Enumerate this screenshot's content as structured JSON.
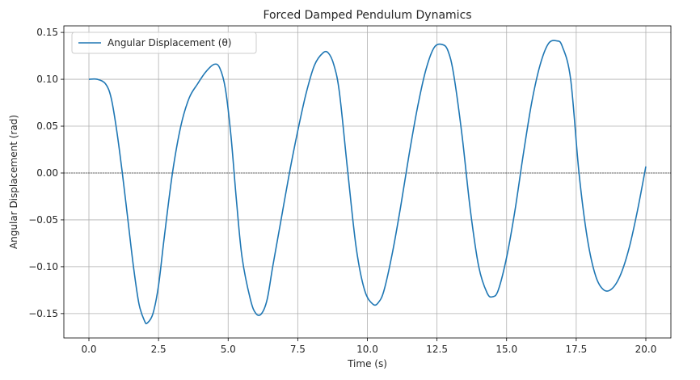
{
  "chart_data": {
    "type": "line",
    "title": "Forced Damped Pendulum Dynamics",
    "xlabel": "Time (s)",
    "ylabel": "Angular Displacement (rad)",
    "xlim": [
      -0.9,
      20.9
    ],
    "ylim": [
      -0.176,
      0.157
    ],
    "xticks": [
      0.0,
      2.5,
      5.0,
      7.5,
      10.0,
      12.5,
      15.0,
      17.5,
      20.0
    ],
    "xtick_labels": [
      "0.0",
      "2.5",
      "5.0",
      "7.5",
      "10.0",
      "12.5",
      "15.0",
      "17.5",
      "20.0"
    ],
    "yticks": [
      -0.15,
      -0.1,
      -0.05,
      0.0,
      0.05,
      0.1,
      0.15
    ],
    "ytick_labels": [
      "−0.15",
      "−0.10",
      "−0.05",
      "0.00",
      "0.05",
      "0.10",
      "0.15"
    ],
    "grid": true,
    "legend": "upper-left",
    "zero_line": true,
    "series": [
      {
        "name": "Angular Displacement (θ)",
        "color": "#1f77b4",
        "x": [
          0.0,
          0.3,
          0.6,
          0.8,
          1.0,
          1.2,
          1.4,
          1.6,
          1.8,
          2.0,
          2.1,
          2.3,
          2.5,
          2.7,
          3.0,
          3.3,
          3.6,
          3.9,
          4.2,
          4.5,
          4.7,
          4.9,
          5.1,
          5.3,
          5.5,
          5.8,
          6.0,
          6.2,
          6.4,
          6.6,
          6.9,
          7.2,
          7.5,
          7.8,
          8.1,
          8.4,
          8.6,
          8.8,
          9.0,
          9.3,
          9.6,
          9.9,
          10.2,
          10.4,
          10.6,
          10.9,
          11.2,
          11.5,
          11.8,
          12.1,
          12.4,
          12.7,
          12.9,
          13.1,
          13.4,
          13.7,
          14.0,
          14.3,
          14.5,
          14.7,
          15.0,
          15.3,
          15.6,
          15.9,
          16.2,
          16.5,
          16.8,
          17.0,
          17.3,
          17.6,
          17.9,
          18.2,
          18.5,
          18.8,
          19.1,
          19.4,
          19.7,
          20.0
        ],
        "values": [
          0.1,
          0.1,
          0.095,
          0.08,
          0.045,
          0.0,
          -0.05,
          -0.1,
          -0.14,
          -0.158,
          -0.16,
          -0.15,
          -0.12,
          -0.07,
          0.0,
          0.05,
          0.08,
          0.095,
          0.108,
          0.116,
          0.112,
          0.09,
          0.04,
          -0.03,
          -0.09,
          -0.135,
          -0.15,
          -0.15,
          -0.135,
          -0.1,
          -0.05,
          0.0,
          0.045,
          0.085,
          0.115,
          0.128,
          0.128,
          0.115,
          0.085,
          0.0,
          -0.08,
          -0.125,
          -0.14,
          -0.138,
          -0.125,
          -0.085,
          -0.035,
          0.02,
          0.07,
          0.11,
          0.134,
          0.137,
          0.13,
          0.105,
          0.04,
          -0.04,
          -0.1,
          -0.128,
          -0.132,
          -0.125,
          -0.09,
          -0.04,
          0.02,
          0.075,
          0.115,
          0.138,
          0.141,
          0.135,
          0.1,
          0.0,
          -0.07,
          -0.11,
          -0.125,
          -0.123,
          -0.108,
          -0.08,
          -0.04,
          0.007
        ]
      }
    ]
  }
}
